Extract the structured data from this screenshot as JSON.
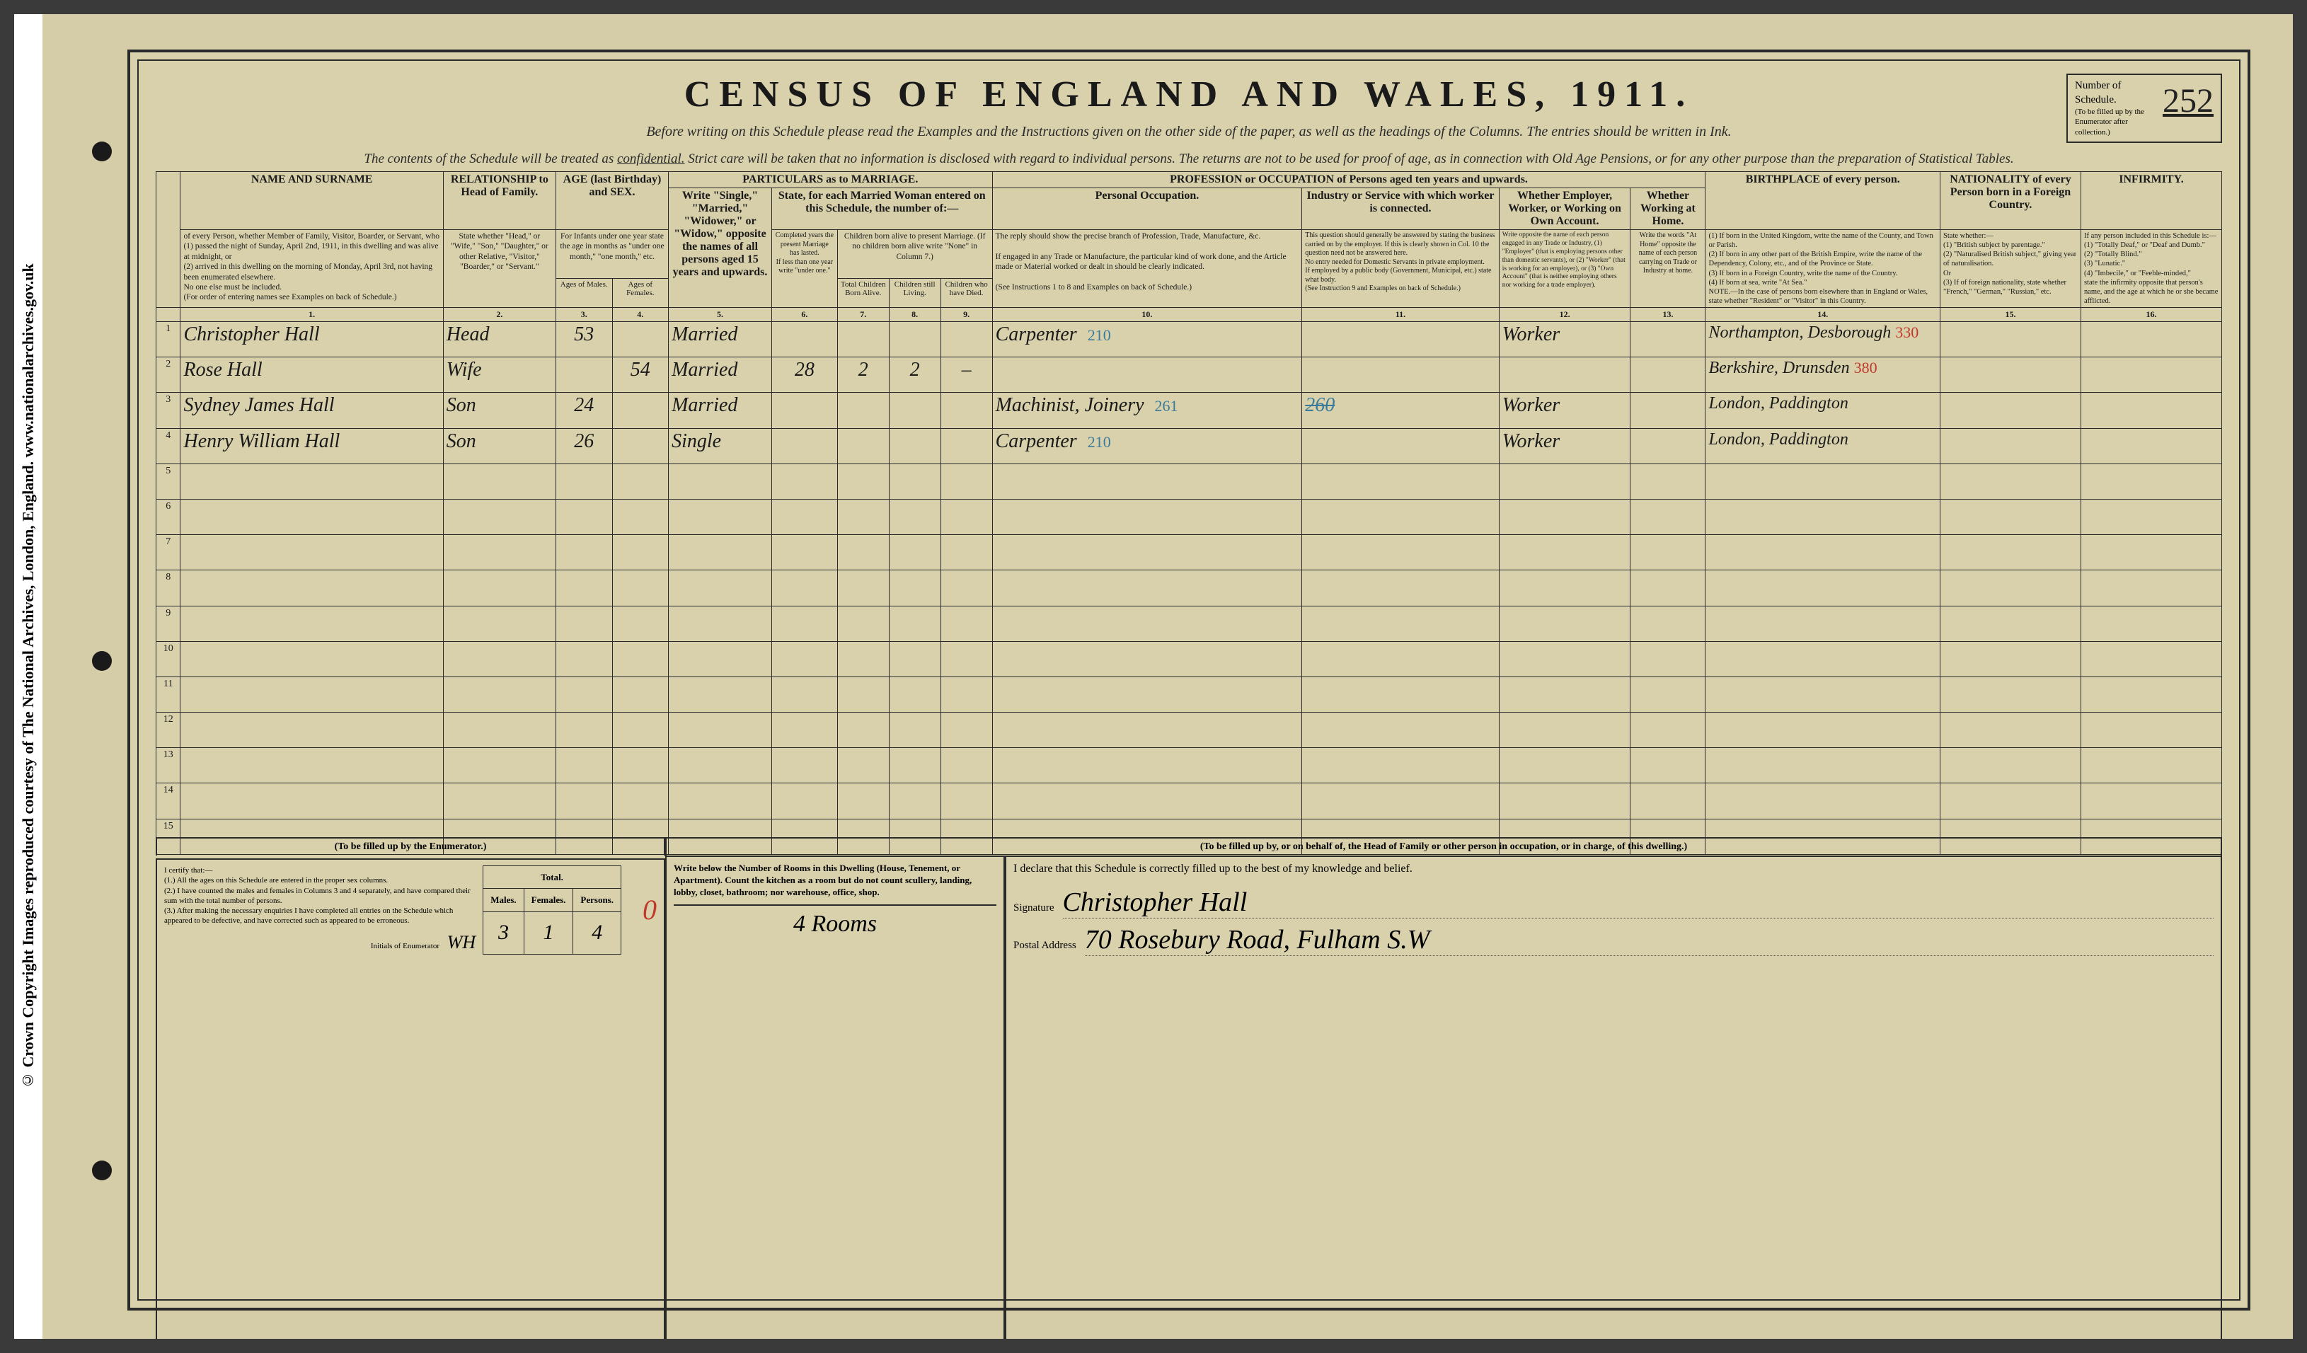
{
  "copyright": "© Crown Copyright Images reproduced courtesy of The National Archives, London, England. www.nationalarchives.gov.uk",
  "title": "CENSUS OF ENGLAND AND WALES, 1911.",
  "subtitle": "Before writing on this Schedule please read the Examples and the Instructions given on the other side of the paper, as well as the headings of the Columns.  The entries should be written in Ink.",
  "confidential": "The contents of the Schedule will be treated as confidential.  Strict care will be taken that no information is disclosed with regard to individual persons.  The returns are not to be used for proof of age, as in connection with Old Age Pensions, or for any other purpose than the preparation of Statistical Tables.",
  "schedule_box": {
    "label": "Number of Schedule.",
    "note": "(To be filled up by the Enumerator after collection.)",
    "value": "252"
  },
  "headers": {
    "name": "NAME AND SURNAME",
    "relation": "RELATIONSHIP to Head of Family.",
    "age": "AGE (last Birthday) and SEX.",
    "marriage": "PARTICULARS as to MARRIAGE.",
    "profession": "PROFESSION or OCCUPATION of Persons aged ten years and upwards.",
    "birthplace": "BIRTHPLACE of every person.",
    "nationality": "NATIONALITY of every Person born in a Foreign Country.",
    "infirmity": "INFIRMITY."
  },
  "header_details": {
    "name": "of every Person, whether Member of Family, Visitor, Boarder, or Servant, who\n(1) passed the night of Sunday, April 2nd, 1911, in this dwelling and was alive at midnight, or\n(2) arrived in this dwelling on the morning of Monday, April 3rd, not having been enumerated elsewhere.\nNo one else must be included.\n(For order of entering names see Examples on back of Schedule.)",
    "relation": "State whether \"Head,\" or \"Wife,\" \"Son,\" \"Daughter,\" or other Relative, \"Visitor,\" \"Boarder,\" or \"Servant.\"",
    "age": "For Infants under one year state the age in months as \"under one month,\" \"one month,\" etc.",
    "marriage_status": "Write \"Single,\" \"Married,\" \"Widower,\" or \"Widow,\" opposite the names of all persons aged 15 years and upwards.",
    "married_women": "State, for each Married Woman entered on this Schedule, the number of:—",
    "children_alive": "Children born alive to present Marriage. (If no children born alive write \"None\" in Column 7.)",
    "personal_occ": "Personal Occupation.",
    "occ_reply": "The reply should show the precise branch of Profession, Trade, Manufacture, &c.\n\nIf engaged in any Trade or Manufacture, the particular kind of work done, and the Article made or Material worked or dealt in should be clearly indicated.\n\n(See Instructions 1 to 8 and Examples on back of Schedule.)",
    "industry": "Industry or Service with which worker is connected.",
    "industry_detail": "This question should generally be answered by stating the business carried on by the employer. If this is clearly shown in Col. 10 the question need not be answered here.\nNo entry needed for Domestic Servants in private employment.\nIf employed by a public body (Government, Municipal, etc.) state what body.\n(See Instruction 9 and Examples on back of Schedule.)",
    "employer": "Whether Employer, Worker, or Working on Own Account.",
    "employer_detail": "Write opposite the name of each person engaged in any Trade or Industry, (1) \"Employer\" (that is employing persons other than domestic servants), or (2) \"Worker\" (that is working for an employer), or (3) \"Own Account\" (that is neither employing others nor working for a trade employer).",
    "at_home": "Whether Working at Home.",
    "at_home_detail": "Write the words \"At Home\" opposite the name of each person carrying on Trade or Industry at home.",
    "birthplace_detail": "(1) If born in the United Kingdom, write the name of the County, and Town or Parish.\n(2) If born in any other part of the British Empire, write the name of the Dependency, Colony, etc., and of the Province or State.\n(3) If born in a Foreign Country, write the name of the Country.\n(4) If born at sea, write \"At Sea.\"\nNOTE.—In the case of persons born elsewhere than in England or Wales, state whether \"Resident\" or \"Visitor\" in this Country.",
    "nationality_detail": "State whether:—\n(1) \"British subject by parentage.\"\n(2) \"Naturalised British subject,\" giving year of naturalisation.\nOr\n(3) If of foreign nationality, state whether \"French,\" \"German,\" \"Russian,\" etc.",
    "infirmity_detail": "If any person included in this Schedule is:—\n(1) \"Totally Deaf,\" or \"Deaf and Dumb.\"\n(2) \"Totally Blind.\"\n(3) \"Lunatic.\"\n(4) \"Imbecile,\" or \"Feeble-minded,\"\nstate the infirmity opposite that person's name, and the age at which he or she became afflicted."
  },
  "sub_headers": {
    "ages_m": "Ages of Males.",
    "ages_f": "Ages of Females.",
    "years_married": "Completed years the present Marriage has lasted.\nIf less than one year write \"under one.\"",
    "total_children": "Total Children Born Alive.",
    "children_living": "Children still Living.",
    "children_died": "Children who have Died."
  },
  "col_numbers": [
    "1.",
    "2.",
    "3.",
    "4.",
    "5.",
    "6.",
    "7.",
    "8.",
    "9.",
    "10.",
    "11.",
    "12.",
    "13.",
    "14.",
    "15.",
    "16."
  ],
  "rows": [
    {
      "n": "1",
      "name": "Christopher Hall",
      "rel": "Head",
      "age_m": "53",
      "age_f": "",
      "marr": "Married",
      "yrs": "",
      "tot": "",
      "liv": "",
      "died": "",
      "occ": "Carpenter",
      "occ_code": "210",
      "ind": "",
      "emp": "Worker",
      "home": "",
      "birth": "Northampton, Desborough",
      "birth_code": "330",
      "nat": "",
      "inf": ""
    },
    {
      "n": "2",
      "name": "Rose Hall",
      "rel": "Wife",
      "age_m": "",
      "age_f": "54",
      "marr": "Married",
      "yrs": "28",
      "tot": "2",
      "liv": "2",
      "died": "–",
      "occ": "",
      "occ_code": "",
      "ind": "",
      "emp": "",
      "home": "",
      "birth": "Berkshire, Drunsden",
      "birth_code": "380",
      "nat": "",
      "inf": ""
    },
    {
      "n": "3",
      "name": "Sydney James Hall",
      "rel": "Son",
      "age_m": "24",
      "age_f": "",
      "marr": "Married",
      "yrs": "",
      "tot": "",
      "liv": "",
      "died": "",
      "occ": "Machinist, Joinery",
      "occ_code": "261",
      "ind": "",
      "ind_strike": "260",
      "emp": "Worker",
      "home": "",
      "birth": "London, Paddington",
      "birth_code": "",
      "nat": "",
      "inf": ""
    },
    {
      "n": "4",
      "name": "Henry William Hall",
      "rel": "Son",
      "age_m": "26",
      "age_f": "",
      "marr": "Single",
      "yrs": "",
      "tot": "",
      "liv": "",
      "died": "",
      "occ": "Carpenter",
      "occ_code": "210",
      "ind": "",
      "emp": "Worker",
      "home": "",
      "birth": "London, Paddington",
      "birth_code": "",
      "nat": "",
      "inf": ""
    }
  ],
  "footer": {
    "enum_header": "(To be filled up by the Enumerator.)",
    "enum_text": "I certify that:—\n(1.) All the ages on this Schedule are entered in the proper sex columns.\n(2.) I have counted the males and females in Columns 3 and 4 separately, and have compared their sum with the total number of persons.\n(3.) After making the necessary enquiries I have completed all entries on the Schedule which appeared to be defective, and have corrected such as appeared to be erroneous.",
    "enum_initials_label": "Initials of Enumerator",
    "enum_initials": "WH",
    "totals": {
      "males_h": "Males.",
      "females_h": "Females.",
      "persons_h": "Persons.",
      "total_h": "Total.",
      "males": "3",
      "females": "1",
      "persons": "4"
    },
    "red_zero": "0",
    "head_header": "(To be filled up by, or on behalf of, the Head of Family or other person in occupation, or in charge, of this dwelling.)",
    "rooms_text": "Write below the Number of Rooms in this Dwelling (House, Tenement, or Apartment). Count the kitchen as a room but do not count scullery, landing, lobby, closet, bathroom; nor warehouse, office, shop.",
    "rooms_value": "4 Rooms",
    "declaration": "I declare that this Schedule is correctly filled up to the best of my knowledge and belief.",
    "sig_label": "Signature",
    "signature": "Christopher Hall",
    "addr_label": "Postal Address",
    "address": "70 Rosebury Road, Fulham S.W"
  },
  "colors": {
    "paper": "#d4cda8",
    "ink": "#1a1a1a",
    "blue": "#3a7a9a",
    "red": "#c0392b"
  }
}
